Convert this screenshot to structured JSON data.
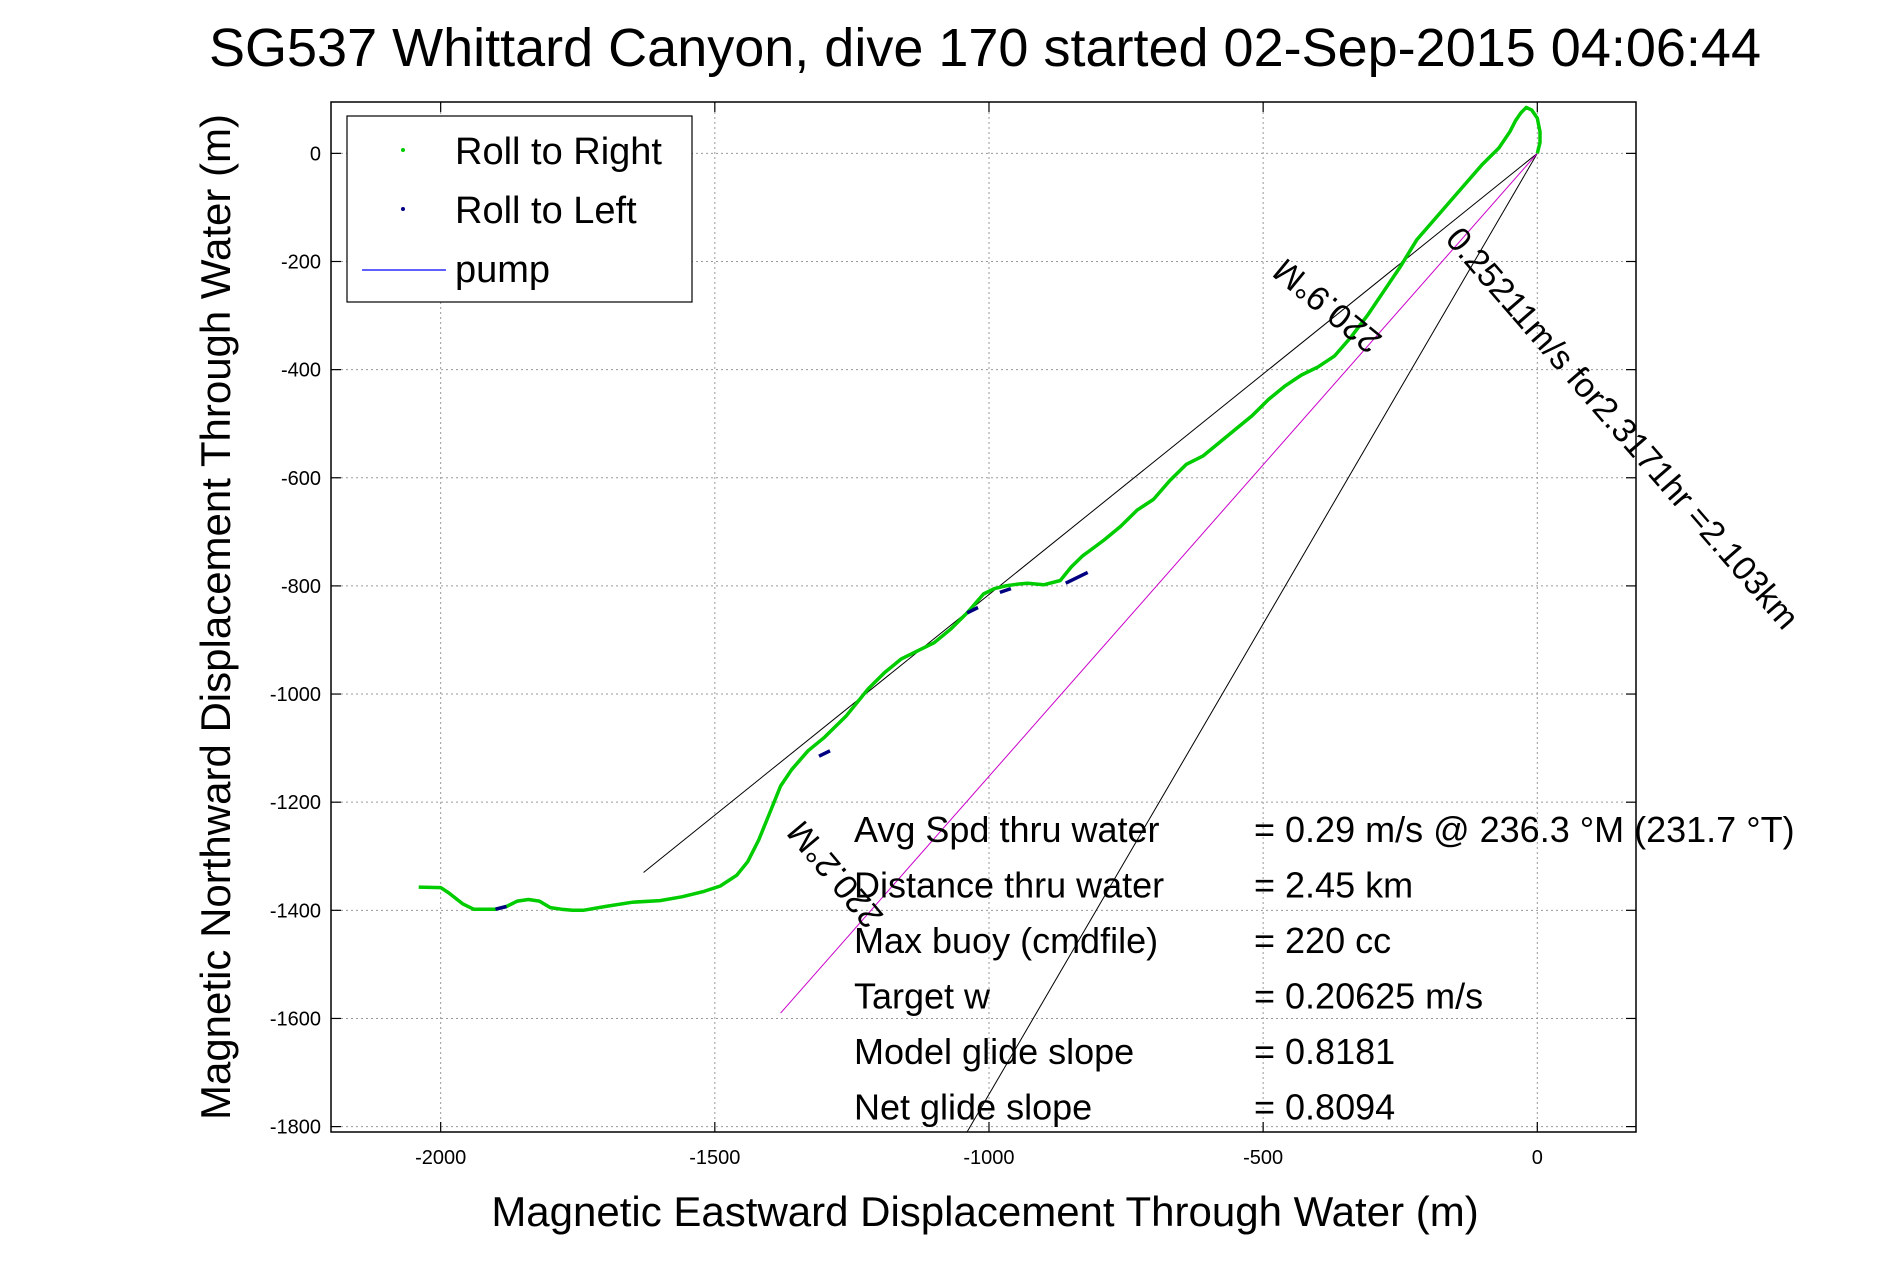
{
  "chart_data": {
    "type": "line",
    "title": "SG537 Whittard Canyon, dive 170 started 02-Sep-2015 04:06:44",
    "xlabel": "Magnetic Eastward Displacement Through Water (m)",
    "ylabel": "Magnetic Northward Displacement Through Water (m)",
    "xlim": [
      -2200,
      180
    ],
    "ylim": [
      -1810,
      95
    ],
    "x_ticks": [
      -2000,
      -1500,
      -1000,
      -500,
      0
    ],
    "x_tick_labels": [
      "-2000",
      "-1500",
      "-1000",
      "-500",
      "0"
    ],
    "y_ticks": [
      0,
      -200,
      -400,
      -600,
      -800,
      -1000,
      -1200,
      -1400,
      -1600,
      -1800
    ],
    "y_tick_labels": [
      "0",
      "-200",
      "-400",
      "-600",
      "-800",
      "-1000",
      "-1200",
      "-1400",
      "-1600",
      "-1800"
    ],
    "grid": true,
    "legend_position": "top-left",
    "colors": {
      "roll_right": "#00cc00",
      "roll_left": "#000080",
      "pump": "#0000ff",
      "current_line": "#cc00cc",
      "wedge": "#000000"
    },
    "legend": [
      {
        "label": "Roll to Right",
        "key": "roll_right",
        "style": "dot"
      },
      {
        "label": "Roll to Left",
        "key": "roll_left",
        "style": "dot"
      },
      {
        "label": "pump",
        "key": "pump",
        "style": "line"
      }
    ],
    "series": [
      {
        "name": "Roll to Right",
        "type": "line",
        "x": [
          -2040,
          -2000,
          -1985,
          -1960,
          -1940,
          -1900,
          -1880,
          -1860,
          -1840,
          -1820,
          -1800,
          -1780,
          -1760,
          -1740,
          -1700,
          -1650,
          -1600,
          -1560,
          -1520,
          -1490,
          -1460,
          -1440,
          -1420,
          -1400,
          -1380,
          -1360,
          -1330,
          -1300,
          -1260,
          -1220,
          -1190,
          -1160,
          -1130,
          -1100,
          -1070,
          -1040,
          -1010,
          -990,
          -970,
          -950,
          -930,
          -900,
          -870,
          -850,
          -830,
          -810,
          -790,
          -760,
          -730,
          -700,
          -670,
          -640,
          -610,
          -580,
          -550,
          -520,
          -490,
          -460,
          -430,
          -400,
          -370,
          -340,
          -310,
          -280,
          -250,
          -220,
          -190,
          -160,
          -130,
          -100,
          -70,
          -50,
          -40,
          -30,
          -20,
          -10,
          0,
          5,
          5,
          0
        ],
        "y": [
          -1357,
          -1358,
          -1368,
          -1388,
          -1398,
          -1398,
          -1393,
          -1383,
          -1380,
          -1383,
          -1395,
          -1398,
          -1400,
          -1400,
          -1393,
          -1385,
          -1382,
          -1375,
          -1365,
          -1355,
          -1335,
          -1310,
          -1270,
          -1220,
          -1170,
          -1140,
          -1105,
          -1080,
          -1040,
          -990,
          -960,
          -935,
          -920,
          -905,
          -880,
          -850,
          -815,
          -805,
          -800,
          -797,
          -795,
          -798,
          -790,
          -765,
          -745,
          -730,
          -715,
          -690,
          -660,
          -640,
          -605,
          -575,
          -560,
          -535,
          -510,
          -485,
          -455,
          -430,
          -410,
          -395,
          -375,
          -340,
          -300,
          -255,
          -210,
          -160,
          -125,
          -90,
          -55,
          -20,
          10,
          40,
          60,
          75,
          85,
          80,
          65,
          40,
          20,
          0
        ]
      },
      {
        "name": "Roll to Left",
        "type": "segments",
        "segments": [
          {
            "x": [
              -1900,
              -1880
            ],
            "y": [
              -1398,
              -1393
            ]
          },
          {
            "x": [
              -1310,
              -1290
            ],
            "y": [
              -1115,
              -1105
            ]
          },
          {
            "x": [
              -1040,
              -1020
            ],
            "y": [
              -850,
              -840
            ]
          },
          {
            "x": [
              -980,
              -960
            ],
            "y": [
              -812,
              -805
            ]
          },
          {
            "x": [
              -860,
              -820
            ],
            "y": [
              -795,
              -775
            ]
          }
        ]
      }
    ],
    "annotations": {
      "current_line": {
        "x": [
          0,
          -1380
        ],
        "y": [
          0,
          -1590
        ]
      },
      "wedge_lines": [
        {
          "x": [
            0,
            -1630
          ],
          "y": [
            0,
            -1330
          ]
        },
        {
          "x": [
            0,
            -1040
          ],
          "y": [
            0,
            -1810
          ]
        }
      ],
      "rotated_labels": [
        {
          "text": "0.25211m/s for2.3171hr =2.103km",
          "x": -170,
          "y": -160,
          "angle": 49.1
        },
        {
          "text": "220.9°M",
          "x": -280,
          "y": -340,
          "angle": 219.3
        },
        {
          "text": "220.2°M",
          "x": -1190,
          "y": -1410,
          "angle": 230.0
        }
      ]
    },
    "stats": [
      {
        "label": "Avg Spd thru water",
        "value": "=  0.29 m/s @ 236.3 °M (231.7 °T)"
      },
      {
        "label": "Distance thru water",
        "value": "=  2.45 km"
      },
      {
        "label": "Max buoy (cmdfile)",
        "value": "= 220 cc"
      },
      {
        "label": "Target w",
        "value": "= 0.20625 m/s"
      },
      {
        "label": "Model glide slope",
        "value": "= 0.8181"
      },
      {
        "label": "Net glide slope",
        "value": "= 0.8094"
      }
    ]
  }
}
